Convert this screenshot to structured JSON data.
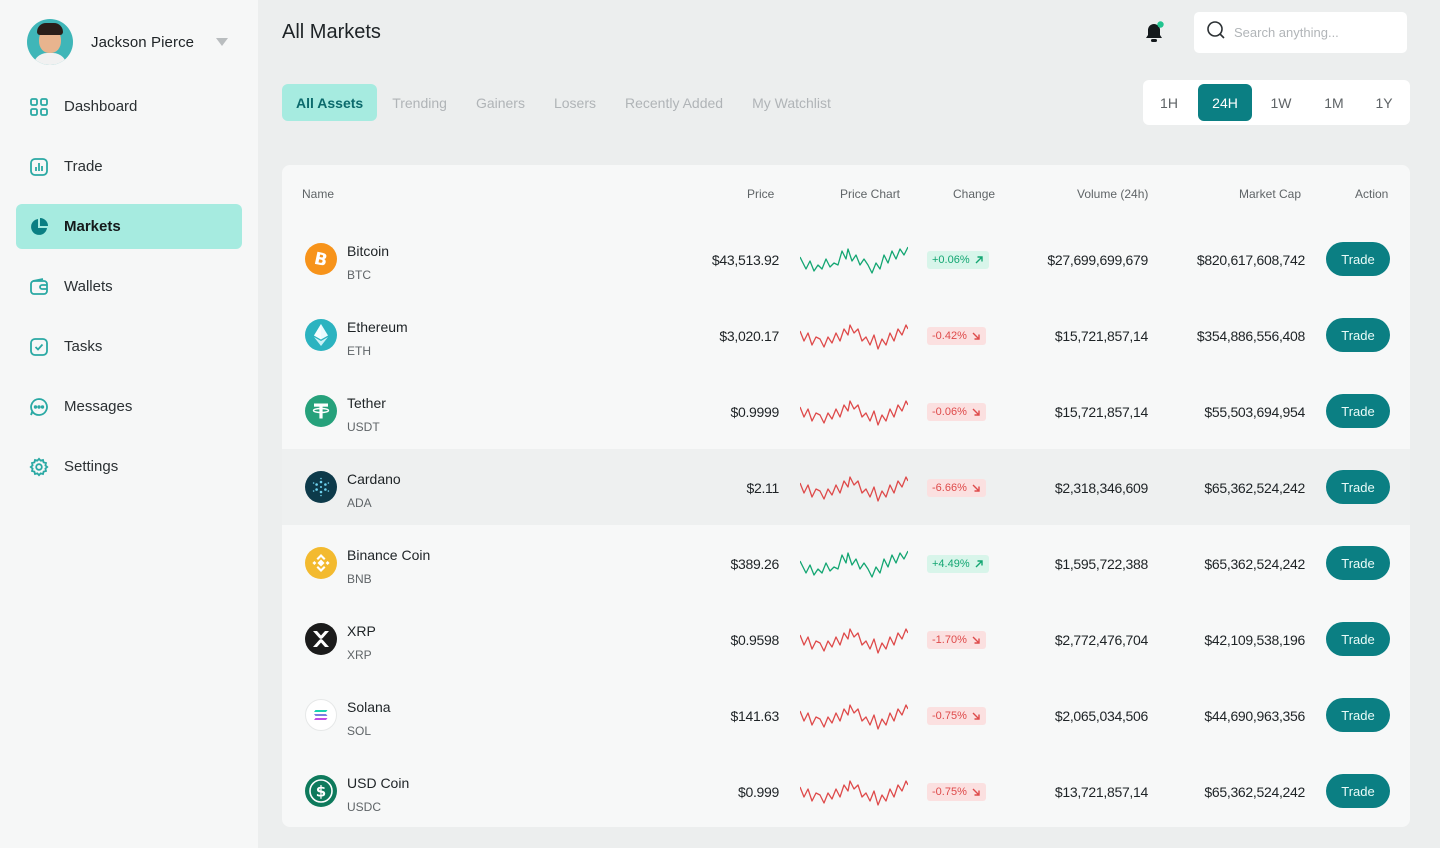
{
  "user": {
    "name": "Jackson Pierce"
  },
  "sidebar": {
    "items": [
      {
        "label": "Dashboard",
        "icon": "grid-icon",
        "active": false
      },
      {
        "label": "Trade",
        "icon": "bar-chart-icon",
        "active": false
      },
      {
        "label": "Markets",
        "icon": "pie-chart-icon",
        "active": true
      },
      {
        "label": "Wallets",
        "icon": "wallet-icon",
        "active": false
      },
      {
        "label": "Tasks",
        "icon": "checkbox-icon",
        "active": false
      },
      {
        "label": "Messages",
        "icon": "chat-icon",
        "active": false
      },
      {
        "label": "Settings",
        "icon": "gear-icon",
        "active": false
      }
    ]
  },
  "header": {
    "title": "All Markets",
    "search_placeholder": "Search anything..."
  },
  "tabs": [
    {
      "label": "All Assets",
      "active": true
    },
    {
      "label": "Trending",
      "active": false
    },
    {
      "label": "Gainers",
      "active": false
    },
    {
      "label": "Losers",
      "active": false
    },
    {
      "label": "Recently Added",
      "active": false
    },
    {
      "label": "My Watchlist",
      "active": false
    }
  ],
  "timeframes": [
    {
      "label": "1H",
      "active": false
    },
    {
      "label": "24H",
      "active": true
    },
    {
      "label": "1W",
      "active": false
    },
    {
      "label": "1M",
      "active": false
    },
    {
      "label": "1Y",
      "active": false
    }
  ],
  "table": {
    "headers": {
      "name": "Name",
      "price": "Price",
      "chart": "Price Chart",
      "change": "Change",
      "volume": "Volume (24h)",
      "market_cap": "Market Cap",
      "action": "Action"
    },
    "action_label": "Trade",
    "rows": [
      {
        "name": "Bitcoin",
        "symbol": "BTC",
        "price": "$43,513.92",
        "change": "+0.06%",
        "direction": "up",
        "volume": "$27,699,699,679",
        "market_cap": "$820,617,608,742",
        "icon": "bitcoin-icon",
        "color": "#f7931a"
      },
      {
        "name": "Ethereum",
        "symbol": "ETH",
        "price": "$3,020.17",
        "change": "-0.42%",
        "direction": "down",
        "volume": "$15,721,857,14",
        "market_cap": "$354,886,556,408",
        "icon": "ethereum-icon",
        "color": "#2bb3c0"
      },
      {
        "name": "Tether",
        "symbol": "USDT",
        "price": "$0.9999",
        "change": "-0.06%",
        "direction": "down",
        "volume": "$15,721,857,14",
        "market_cap": "$55,503,694,954",
        "icon": "tether-icon",
        "color": "#26a17b"
      },
      {
        "name": "Cardano",
        "symbol": "ADA",
        "price": "$2.11",
        "change": "-6.66%",
        "direction": "down",
        "volume": "$2,318,346,609",
        "market_cap": "$65,362,524,242",
        "icon": "cardano-icon",
        "color": "#0d3a4a"
      },
      {
        "name": "Binance Coin",
        "symbol": "BNB",
        "price": "$389.26",
        "change": "+4.49%",
        "direction": "up",
        "volume": "$1,595,722,388",
        "market_cap": "$65,362,524,242",
        "icon": "binance-icon",
        "color": "#f3ba2f"
      },
      {
        "name": "XRP",
        "symbol": "XRP",
        "price": "$0.9598",
        "change": "-1.70%",
        "direction": "down",
        "volume": "$2,772,476,704",
        "market_cap": "$42,109,538,196",
        "icon": "xrp-icon",
        "color": "#1b1b1b"
      },
      {
        "name": "Solana",
        "symbol": "SOL",
        "price": "$141.63",
        "change": "-0.75%",
        "direction": "down",
        "volume": "$2,065,034,506",
        "market_cap": "$44,690,963,356",
        "icon": "solana-icon",
        "color": "#ffffff"
      },
      {
        "name": "USD Coin",
        "symbol": "USDC",
        "price": "$0.999",
        "change": "-0.75%",
        "direction": "down",
        "volume": "$13,721,857,14",
        "market_cap": "$65,362,524,242",
        "icon": "usd-coin-icon",
        "color": "#0e7a5c"
      }
    ]
  },
  "colors": {
    "accent": "#0b7f83",
    "accent_light": "#a6ebe0",
    "up": "#13a672",
    "down": "#de4a4a"
  }
}
